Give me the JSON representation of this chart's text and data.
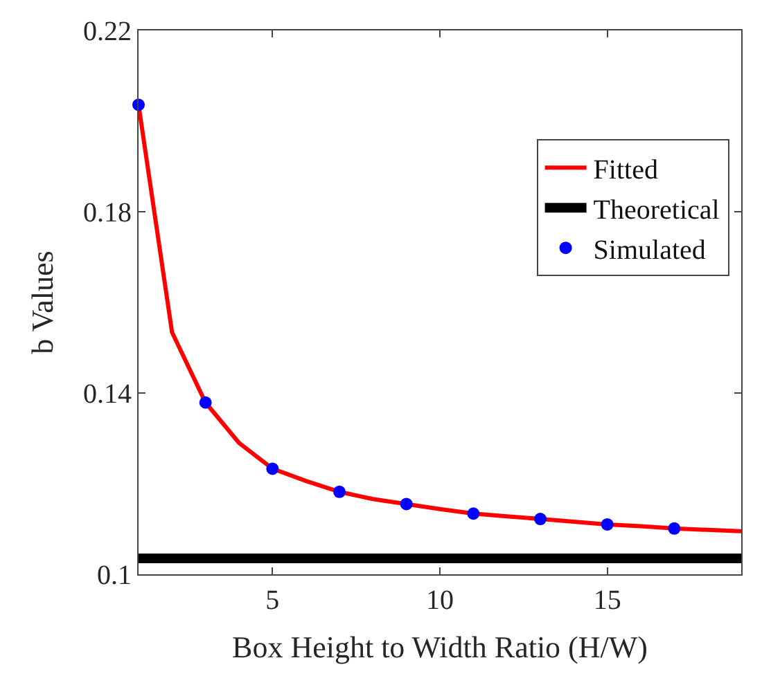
{
  "chart_data": {
    "type": "line",
    "xlabel": "Box Height to Width Ratio (H/W)",
    "ylabel": "b Values",
    "xlim": [
      1,
      19
    ],
    "xticks": [
      5,
      10,
      15
    ],
    "ylim": [
      0.1,
      0.22
    ],
    "yticks": [
      0.1,
      0.14,
      0.18,
      0.22
    ],
    "legend": "top right",
    "series": [
      {
        "name": "Fitted",
        "color": "#ff0000",
        "marker": "none",
        "x": [
          1,
          2,
          3,
          4,
          5,
          6,
          7,
          8,
          9,
          10,
          11,
          12,
          13,
          14,
          15,
          16,
          17,
          18,
          19
        ],
        "values": [
          0.2036,
          0.1534,
          0.1379,
          0.129,
          0.1233,
          0.1206,
          0.1182,
          0.1166,
          0.1155,
          0.1144,
          0.1134,
          0.1128,
          0.1122,
          0.1116,
          0.111,
          0.1106,
          0.1101,
          0.1098,
          0.1095
        ]
      },
      {
        "name": "Theoretical",
        "color": "#000000",
        "marker": "none",
        "x": [
          1,
          19
        ],
        "values": [
          0.1035,
          0.1035
        ]
      },
      {
        "name": "Simulated",
        "type": "scatter",
        "color": "#0000ff",
        "marker": "circle",
        "x": [
          1,
          3,
          5,
          7,
          9,
          11,
          13,
          15,
          17
        ],
        "values": [
          0.2036,
          0.1379,
          0.1233,
          0.1182,
          0.1155,
          0.1134,
          0.1122,
          0.111,
          0.1101
        ]
      }
    ]
  }
}
